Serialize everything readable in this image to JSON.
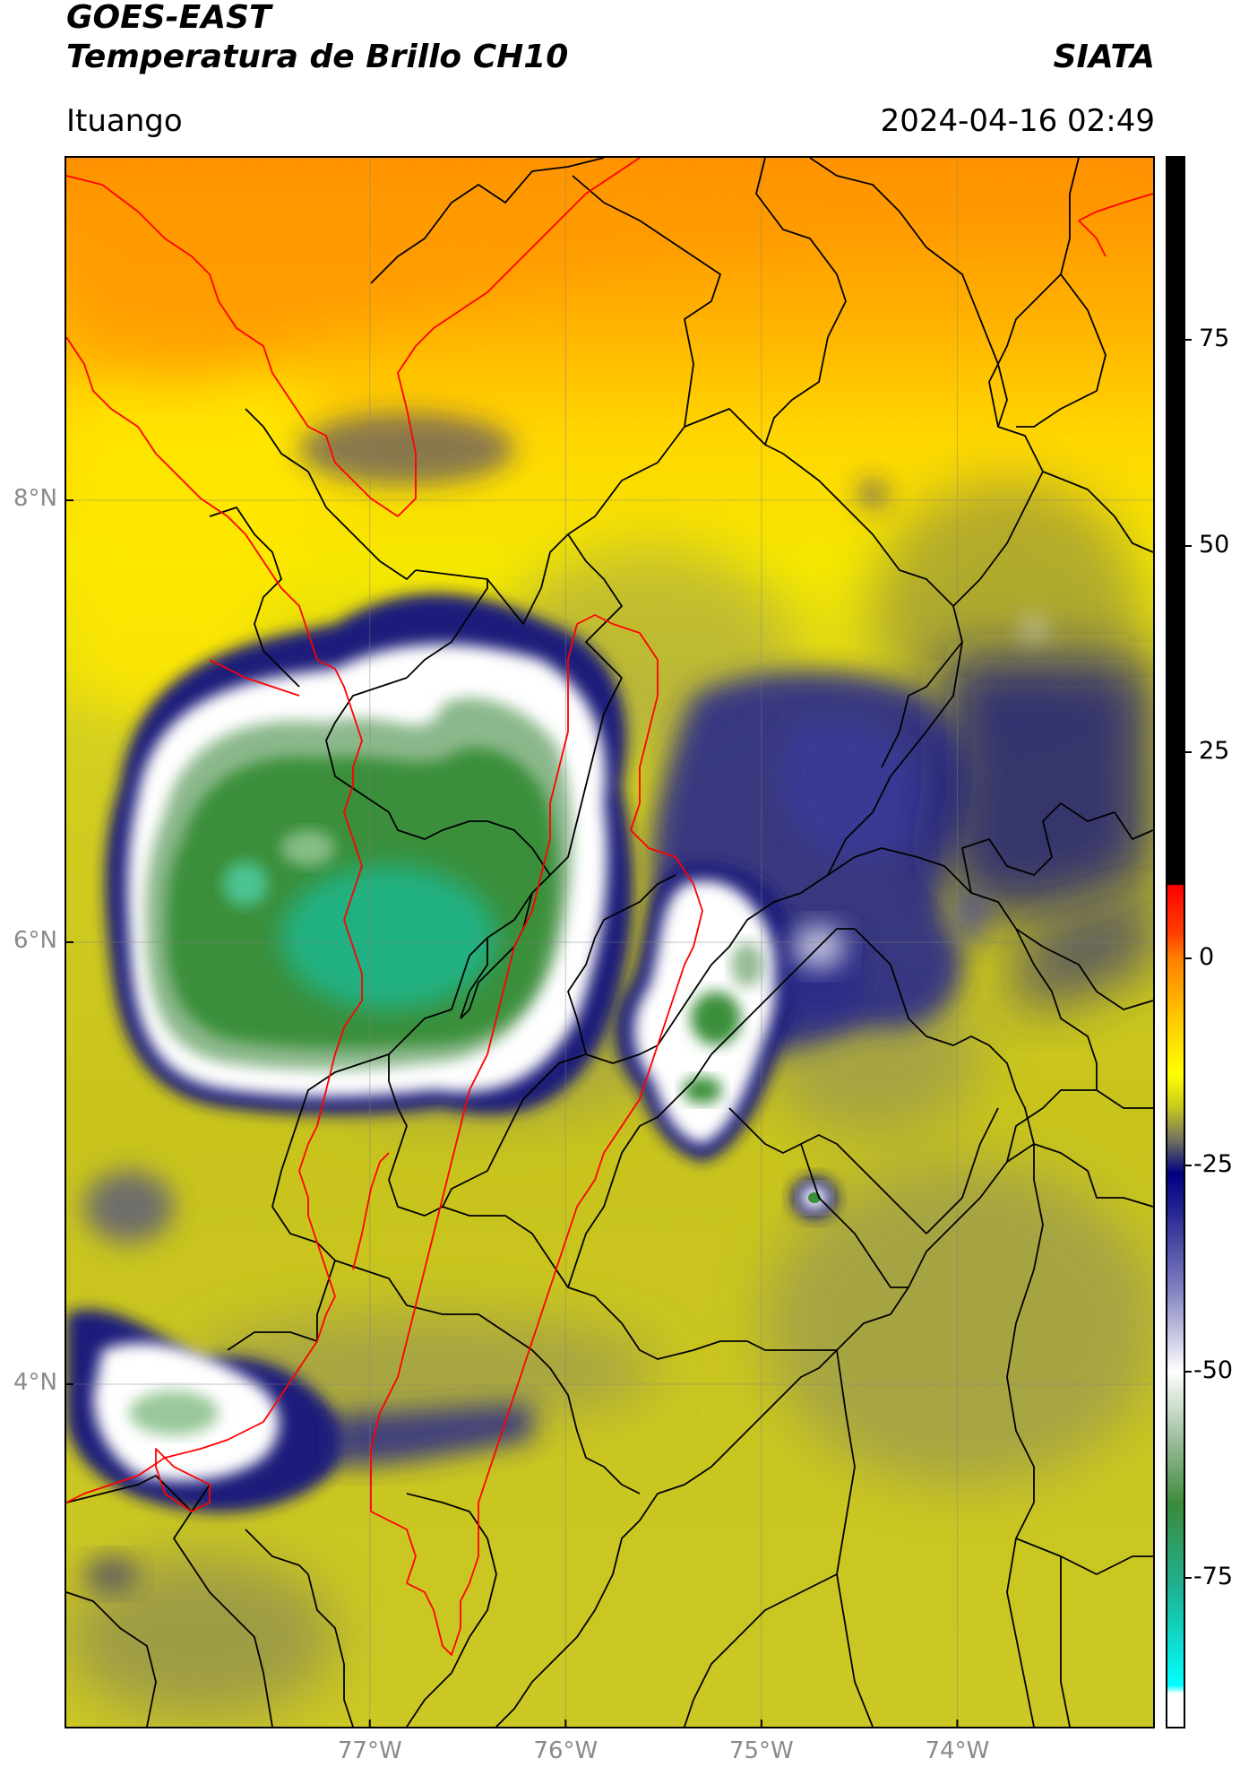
{
  "header": {
    "title_line1": "GOES-EAST",
    "title_line2": "Temperatura de Brillo CH10",
    "org": "SIATA",
    "location": "Ituango",
    "datetime": "2024-04-16 02:49"
  },
  "map": {
    "lat_ticks": [
      {
        "label": "8°N",
        "value": 8
      },
      {
        "label": "6°N",
        "value": 6
      },
      {
        "label": "4°N",
        "value": 4
      }
    ],
    "lon_ticks": [
      {
        "label": "77°W",
        "value": -77
      },
      {
        "label": "76°W",
        "value": -76
      },
      {
        "label": "75°W",
        "value": -75
      },
      {
        "label": "74°W",
        "value": -74
      }
    ],
    "extent": {
      "lon_min": -78.55,
      "lon_max": -73.0,
      "lat_min": 2.45,
      "lat_max": 9.55
    },
    "coastline_color": "#ff0000",
    "border_color": "#000000"
  },
  "colorbar": {
    "ticks": [
      {
        "label": "75",
        "value": 75
      },
      {
        "label": "50",
        "value": 50
      },
      {
        "label": "25",
        "value": 25
      },
      {
        "label": "0",
        "value": 0
      },
      {
        "label": "-25",
        "value": -25
      },
      {
        "label": "-50",
        "value": -50
      },
      {
        "label": "-75",
        "value": -75
      }
    ],
    "range": [
      -93,
      97
    ]
  }
}
